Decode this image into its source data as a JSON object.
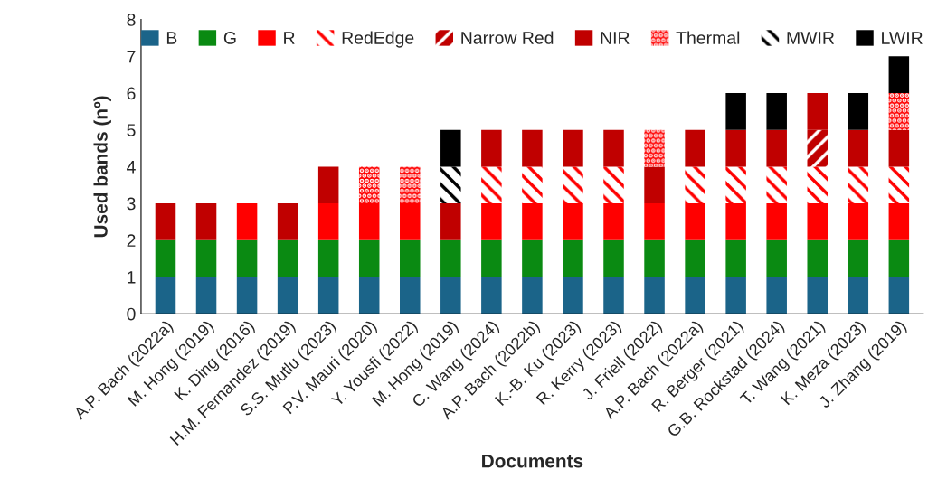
{
  "chart_data": {
    "type": "bar",
    "stacked": true,
    "xlabel": "Documents",
    "ylabel": "Used bands (nº)",
    "categories": [
      "A.P. Bach (2022a)",
      "M. Hong (2019)",
      "K. Ding (2016)",
      "H.M. Fernandez (2019)",
      "S.S. Mutlu (2023)",
      "P.V. Mauri (2020)",
      "Y. Yousfi (2022)",
      "M. Hong (2019)",
      "C. Wang (2024)",
      "A.P. Bach (2022b)",
      "K.-B. Ku (2023)",
      "R. Kerry (2023)",
      "J. Friell (2022)",
      "A.P. Bach (2022a)",
      "R. Berger (2021)",
      "G.B. Rockstad (2024)",
      "T. Wang (2021)",
      "K. Meza (2023)",
      "J. Zhang (2019)"
    ],
    "series": [
      {
        "name": "B",
        "color": "#1b6489",
        "values": [
          1,
          1,
          1,
          1,
          1,
          1,
          1,
          1,
          1,
          1,
          1,
          1,
          1,
          1,
          1,
          1,
          1,
          1,
          1
        ]
      },
      {
        "name": "G",
        "color": "#0a8a12",
        "values": [
          1,
          1,
          1,
          1,
          1,
          1,
          1,
          1,
          1,
          1,
          1,
          1,
          1,
          1,
          1,
          1,
          1,
          1,
          1
        ]
      },
      {
        "name": "R",
        "color": "#ff0000",
        "values": [
          null,
          null,
          1,
          null,
          1,
          1,
          1,
          null,
          1,
          1,
          1,
          1,
          1,
          1,
          1,
          1,
          1,
          1,
          1
        ]
      },
      {
        "name": "RedEdge",
        "color": "#ff0000",
        "values": [
          null,
          null,
          null,
          null,
          null,
          null,
          null,
          null,
          1,
          1,
          1,
          1,
          null,
          1,
          1,
          1,
          1,
          1,
          1
        ]
      },
      {
        "name": "Narrow Red",
        "color": "#c00000",
        "values": [
          null,
          null,
          null,
          null,
          null,
          null,
          null,
          null,
          null,
          null,
          null,
          null,
          null,
          null,
          null,
          null,
          1,
          null,
          null
        ]
      },
      {
        "name": "NIR",
        "color": "#c00000",
        "values": [
          1,
          1,
          null,
          1,
          1,
          null,
          null,
          1,
          1,
          1,
          1,
          1,
          1,
          1,
          1,
          1,
          1,
          1,
          1
        ]
      },
      {
        "name": "Thermal",
        "color": "#ff0000",
        "values": [
          null,
          null,
          null,
          null,
          null,
          1,
          1,
          null,
          null,
          null,
          null,
          null,
          1,
          null,
          null,
          null,
          null,
          null,
          1
        ]
      },
      {
        "name": "MWIR",
        "color": "#000000",
        "values": [
          null,
          null,
          null,
          null,
          null,
          null,
          null,
          1,
          null,
          null,
          null,
          null,
          null,
          null,
          null,
          null,
          null,
          null,
          null
        ]
      },
      {
        "name": "LWIR",
        "color": "#000000",
        "values": [
          null,
          null,
          null,
          null,
          null,
          null,
          null,
          1,
          null,
          null,
          null,
          null,
          null,
          null,
          1,
          1,
          null,
          1,
          1
        ]
      }
    ],
    "ylim": [
      0,
      8
    ],
    "yticks": [
      0,
      1,
      2,
      3,
      4,
      5,
      6,
      7,
      8
    ],
    "grid": false,
    "legend": "top"
  }
}
